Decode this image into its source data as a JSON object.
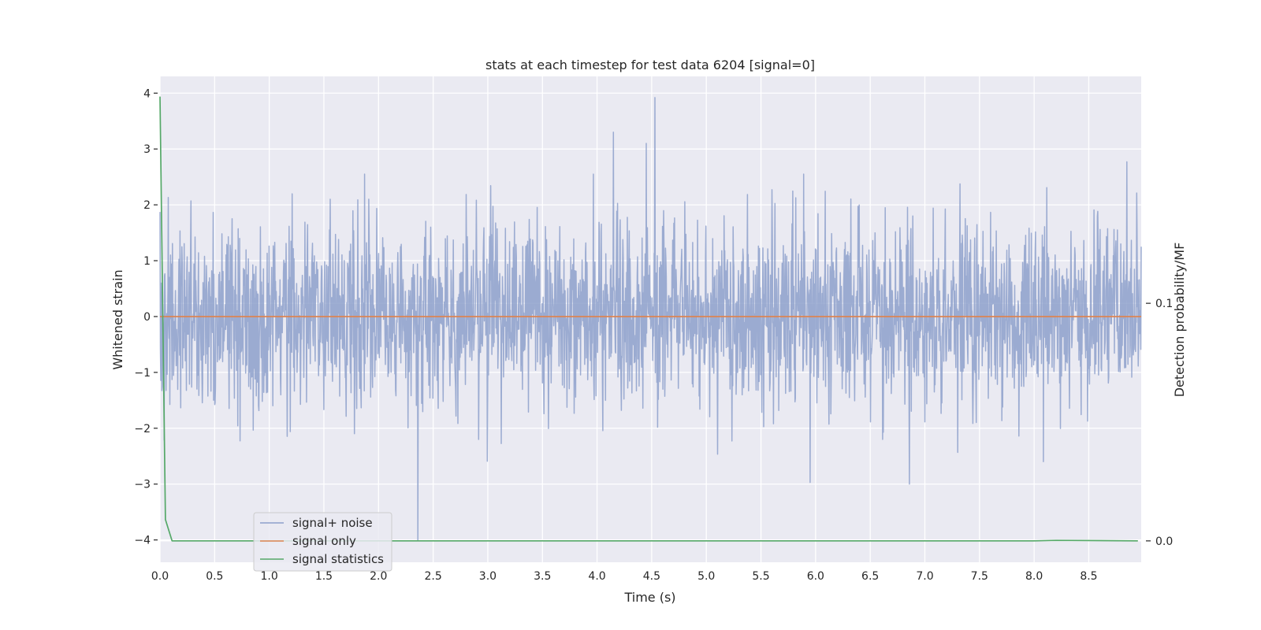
{
  "chart_data": {
    "type": "line",
    "title": "stats at each timestep for test data 6204 [signal=0]",
    "xlabel": "Time (s)",
    "ylabel": "Whitened strain",
    "y2label": "Detection probability/MF",
    "xlim": [
      0,
      8.98
    ],
    "ylim": [
      -4.4,
      4.3
    ],
    "y2lim": [
      -0.009,
      0.1955
    ],
    "x_ticks": [
      0.0,
      0.5,
      1.0,
      1.5,
      2.0,
      2.5,
      3.0,
      3.5,
      4.0,
      4.5,
      5.0,
      5.5,
      6.0,
      6.5,
      7.0,
      7.5,
      8.0,
      8.5
    ],
    "x_tick_labels": [
      "0.0",
      "0.5",
      "1.0",
      "1.5",
      "2.0",
      "2.5",
      "3.0",
      "3.5",
      "4.0",
      "4.5",
      "5.0",
      "5.5",
      "6.0",
      "6.5",
      "7.0",
      "7.5",
      "8.0",
      "8.5"
    ],
    "y_ticks": [
      4,
      3,
      2,
      1,
      0,
      -1,
      -2,
      -3,
      -4
    ],
    "y_tick_labels": [
      "4",
      "3",
      "2",
      "1",
      "0",
      "−1",
      "−2",
      "−3",
      "−4"
    ],
    "y2_ticks": [
      0.1,
      0.0
    ],
    "y2_tick_labels": [
      "0.1",
      "0.0"
    ],
    "grid": true,
    "legend_position": "lower-left",
    "noise_points": 2600,
    "series": [
      {
        "name": "signal+ noise",
        "axis": "left",
        "color": "#8da0cb",
        "kind": "gaussian-noise",
        "x_range": [
          0,
          8.98
        ],
        "std": 1.0,
        "peaks": [
          {
            "x": 4.15,
            "y": 3.3
          },
          {
            "x": 4.45,
            "y": 3.1
          },
          {
            "x": 4.53,
            "y": 3.92
          },
          {
            "x": 8.85,
            "y": 2.77
          },
          {
            "x": 2.36,
            "y": -4.0
          },
          {
            "x": 6.86,
            "y": -3.0
          },
          {
            "x": 5.95,
            "y": -2.97
          }
        ]
      },
      {
        "name": "signal only",
        "axis": "left",
        "color": "#dd8452",
        "x": [
          0,
          8.98
        ],
        "y": [
          0,
          0
        ]
      },
      {
        "name": "signal statistics",
        "axis": "right",
        "color": "#55a868",
        "x": [
          0.0,
          0.05,
          0.11,
          8.0,
          8.2,
          8.95
        ],
        "y": [
          0.187,
          0.009,
          0.0,
          0.0,
          0.0002,
          0.0
        ]
      }
    ]
  }
}
